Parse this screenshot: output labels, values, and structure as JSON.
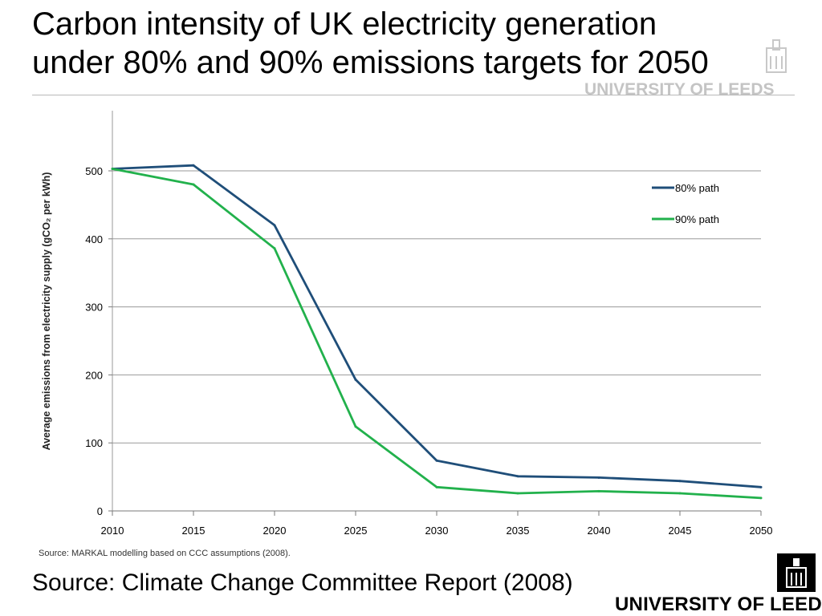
{
  "slide": {
    "title_line1": "Carbon intensity of UK electricity generation",
    "title_line2": "under 80% and 90% emissions targets for 2050",
    "source_note": "Source: MARKAL modelling based on CCC assumptions (2008).",
    "source_footer": "Source: Climate Change Committee Report (2008)",
    "watermark": "UNIVERSITY OF LEEDS",
    "logo_text": "UNIVERSITY OF LEEDS"
  },
  "chart_data": {
    "type": "line",
    "title": "",
    "xlabel": "",
    "ylabel": "Average emissions from electricity supply (gCO₂ per kWh)",
    "x": [
      2010,
      2015,
      2020,
      2025,
      2030,
      2035,
      2040,
      2045,
      2050
    ],
    "xlim": [
      2010,
      2050
    ],
    "ylim": [
      0,
      500
    ],
    "yticks": [
      0,
      100,
      200,
      300,
      400,
      500
    ],
    "grid": true,
    "legend_position": "top-right",
    "series": [
      {
        "name": "80% path",
        "color": "#1f4e79",
        "values": [
          503,
          508,
          420,
          193,
          74,
          51,
          49,
          44,
          35
        ]
      },
      {
        "name": "90% path",
        "color": "#22b14c",
        "values": [
          503,
          480,
          386,
          124,
          35,
          26,
          29,
          26,
          19
        ]
      }
    ]
  }
}
